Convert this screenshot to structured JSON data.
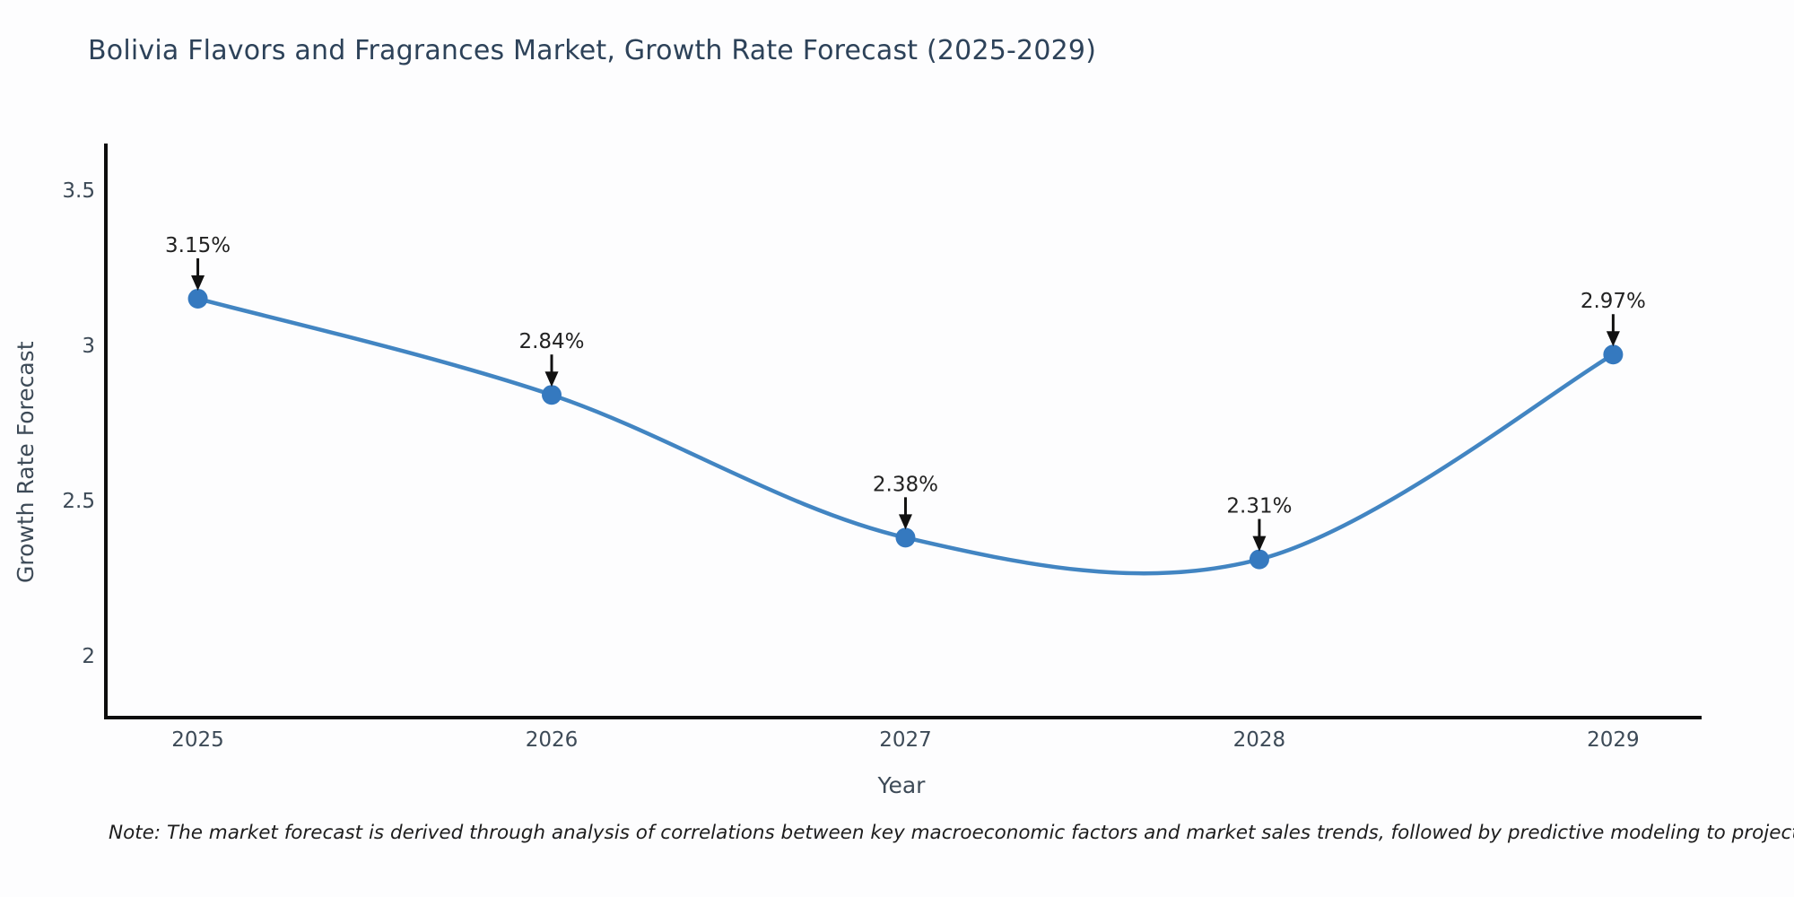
{
  "chart_data": {
    "type": "line",
    "title": "Bolivia Flavors and Fragrances Market, Growth Rate Forecast (2025-2029)",
    "xlabel": "Year",
    "ylabel": "Growth Rate Forecast",
    "x": [
      2025,
      2026,
      2027,
      2028,
      2029
    ],
    "series": [
      {
        "name": "Growth Rate Forecast",
        "values": [
          3.15,
          2.84,
          2.38,
          2.31,
          2.97
        ],
        "point_labels": [
          "3.15%",
          "2.84%",
          "2.38%",
          "2.31%",
          "2.97%"
        ]
      }
    ],
    "xticks": [
      2025,
      2026,
      2027,
      2028,
      2029
    ],
    "yticks": [
      2,
      2.5,
      3,
      3.5
    ],
    "xlim": [
      2024.74,
      2029.25
    ],
    "ylim": [
      1.8,
      3.65
    ],
    "grid": false,
    "legend_position": "none",
    "line_shape": "spline",
    "annotation_style": "value-label-with-down-arrow",
    "colors": {
      "line": "#4285c2",
      "marker": "#3579bf",
      "arrow": "#111111",
      "axis": "#0d0d0d",
      "tick_label": "#3d4a57",
      "axis_title": "#3d4a57",
      "title": "#2d4259"
    }
  },
  "footnote": {
    "text": "Note: The market forecast is derived through analysis of correlations between key macroeconomic factors and market sales trends, followed by predictive modeling to project future sales"
  }
}
